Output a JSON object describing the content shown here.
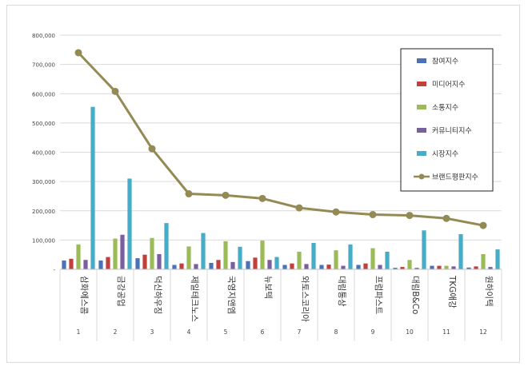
{
  "chart_data": {
    "type": "bar",
    "title": "",
    "xlabel": "",
    "ylabel": "",
    "ylim": [
      0,
      800000
    ],
    "y_ticks": [
      "-",
      "100,000",
      "200,000",
      "300,000",
      "400,000",
      "500,000",
      "600,000",
      "700,000",
      "800,000"
    ],
    "y_tick_values": [
      0,
      100000,
      200000,
      300000,
      400000,
      500000,
      600000,
      700000,
      800000
    ],
    "grid": "horizontal",
    "legend_position": "right",
    "categories": [
      "삼화에스콤",
      "금강공업",
      "덕신하우징",
      "제일테크노스",
      "국영지앤엠",
      "뉴보텍",
      "와토스코리아",
      "대림통상",
      "프럼파스트",
      "대림B&Co",
      "TKG애강",
      "원하이텍"
    ],
    "category_numbers": [
      "1",
      "2",
      "3",
      "4",
      "5",
      "6",
      "7",
      "8",
      "9",
      "10",
      "11",
      "12"
    ],
    "series": [
      {
        "name": "참여지수",
        "kind": "bar",
        "color": "#4a72b8",
        "values": [
          30000,
          30000,
          38000,
          15000,
          22000,
          28000,
          15000,
          15000,
          15000,
          5000,
          12000,
          6000
        ]
      },
      {
        "name": "미디어지수",
        "kind": "bar",
        "color": "#c0403c",
        "values": [
          36000,
          42000,
          50000,
          20000,
          32000,
          40000,
          20000,
          16000,
          20000,
          8000,
          12000,
          10000
        ]
      },
      {
        "name": "소통지수",
        "kind": "bar",
        "color": "#9bbb59",
        "values": [
          85000,
          105000,
          107000,
          78000,
          96000,
          98000,
          60000,
          65000,
          72000,
          32000,
          12000,
          52000
        ]
      },
      {
        "name": "커뮤니티지수",
        "kind": "bar",
        "color": "#7a5ea0",
        "values": [
          32000,
          118000,
          52000,
          18000,
          25000,
          32000,
          18000,
          12000,
          15000,
          5000,
          10000,
          8000
        ]
      },
      {
        "name": "시장지수",
        "kind": "bar",
        "color": "#46acc8",
        "values": [
          555000,
          310000,
          158000,
          124000,
          77000,
          42000,
          90000,
          85000,
          60000,
          133000,
          120000,
          68000
        ]
      },
      {
        "name": "브랜드평판지수",
        "kind": "line",
        "color": "#948a54",
        "values": [
          740000,
          608000,
          412000,
          258000,
          253000,
          242000,
          210000,
          196000,
          187000,
          184000,
          174000,
          150000
        ]
      }
    ]
  }
}
